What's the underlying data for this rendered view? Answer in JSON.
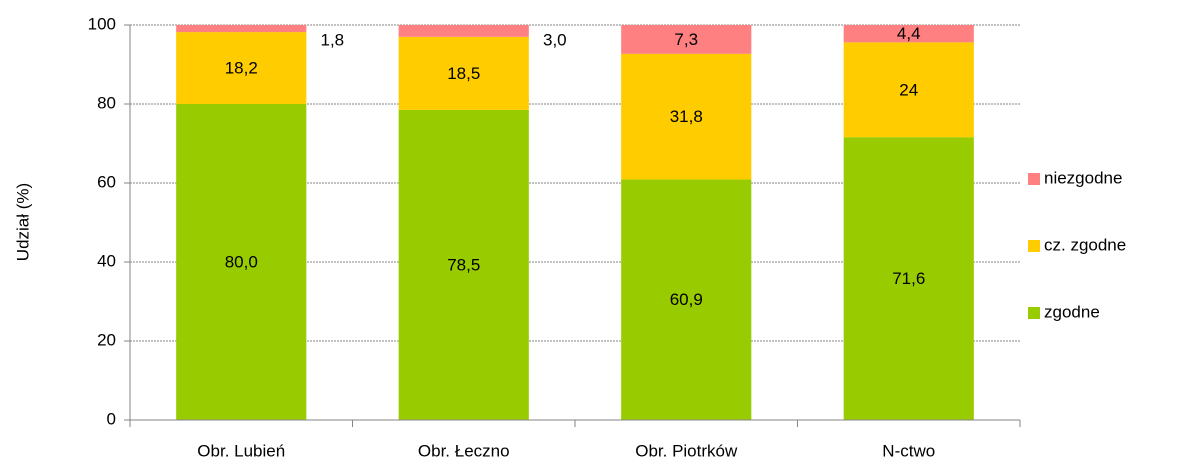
{
  "chart_data": {
    "type": "stacked_bar",
    "y_axis_label": "Udział (%)",
    "categories": [
      "Obr. Lubień",
      "Obr. Łeczno",
      "Obr. Piotrków",
      "N-ctwo"
    ],
    "series": [
      {
        "name": "zgodne",
        "color": "#99cc00",
        "values": [
          80.0,
          78.5,
          60.9,
          71.6
        ],
        "value_labels": [
          "80,0",
          "78,5",
          "60,9",
          "71,6"
        ]
      },
      {
        "name": "cz. zgodne",
        "color": "#ffcc00",
        "values": [
          18.2,
          18.5,
          31.8,
          24
        ],
        "value_labels": [
          "18,2",
          "18,5",
          "31,8",
          "24"
        ]
      },
      {
        "name": "niezgodne",
        "color": "#ff8080",
        "values": [
          1.8,
          3.0,
          7.3,
          4.4
        ],
        "value_labels": [
          "1,8",
          "3,0",
          "7,3",
          "4,4"
        ]
      }
    ],
    "ylim": [
      0,
      100
    ],
    "yticks": [
      0,
      20,
      40,
      60,
      80,
      100
    ],
    "grid": true,
    "legend": "right"
  }
}
